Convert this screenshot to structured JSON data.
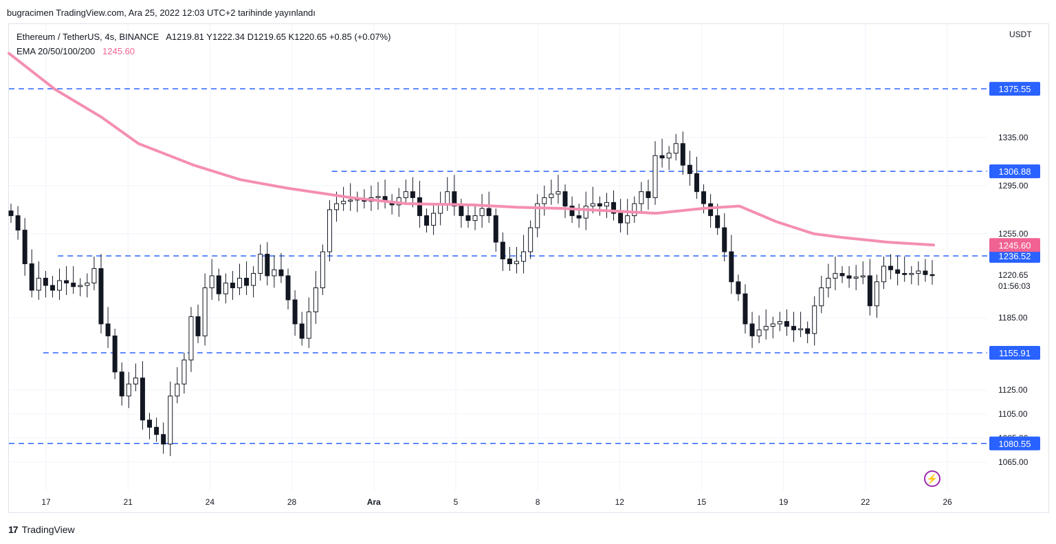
{
  "caption": "bugracimen TradingView.com, Ara 25, 2022 12:03 UTC+2 tarihinde yayınlandı",
  "legend": {
    "symbol": "Ethereum / TetherUS, 4s, BINANCE",
    "ohlc": "A1219.81  Y1222.34  D1219.65  K1220.65  +0.85 (+0.07%)",
    "ema_label": "EMA 20/50/100/200",
    "ema_value": "1245.60"
  },
  "footer": {
    "logo": "17",
    "brand": "TradingView"
  },
  "chart_data": {
    "type": "line",
    "currency": "USDT",
    "price_ticks": [
      "1335.00",
      "1295.00",
      "1255.00",
      "1185.00",
      "1125.00",
      "1105.00",
      "1085.00",
      "1065.00"
    ],
    "ylim": [
      1050,
      1430
    ],
    "x_ticks": [
      "17",
      "21",
      "24",
      "28",
      "Ara",
      "5",
      "8",
      "12",
      "15",
      "19",
      "22",
      "26"
    ],
    "horizontal_levels": [
      {
        "value": 1375.55,
        "label": "1375.55",
        "start": 0.0
      },
      {
        "value": 1306.88,
        "label": "1306.88",
        "start": 0.33
      },
      {
        "value": 1236.52,
        "label": "1236.52",
        "start": 0.05
      },
      {
        "value": 1155.91,
        "label": "1155.91",
        "start": 0.035
      },
      {
        "value": 1080.55,
        "label": "1080.55",
        "start": 0.0
      }
    ],
    "last_price": {
      "value": 1220.65,
      "label": "1220.65",
      "countdown": "01:56:03"
    },
    "ema": {
      "name": "EMA 200",
      "value_label": "1245.60",
      "x": [
        0.0,
        0.05,
        0.1,
        0.14,
        0.2,
        0.25,
        0.3,
        0.37,
        0.43,
        0.5,
        0.55,
        0.6,
        0.65,
        0.7,
        0.75,
        0.79,
        0.83,
        0.87,
        0.9,
        0.95,
        1.0
      ],
      "y": [
        1405,
        1375,
        1352,
        1330,
        1312,
        1300,
        1293,
        1285,
        1280,
        1279,
        1277,
        1276,
        1274,
        1272,
        1276,
        1278,
        1265,
        1255,
        1252,
        1248,
        1245.6
      ]
    },
    "candles_close": [
      1270,
      1258,
      1230,
      1208,
      1218,
      1212,
      1208,
      1216,
      1214,
      1211,
      1212,
      1214,
      1226,
      1180,
      1170,
      1140,
      1120,
      1130,
      1135,
      1100,
      1094,
      1088,
      1080,
      1120,
      1130,
      1150,
      1186,
      1170,
      1210,
      1220,
      1205,
      1214,
      1210,
      1218,
      1212,
      1222,
      1238,
      1220,
      1225,
      1220,
      1200,
      1180,
      1168,
      1190,
      1210,
      1240,
      1275,
      1280,
      1282,
      1283,
      1284,
      1282,
      1285,
      1286,
      1282,
      1279,
      1285,
      1290,
      1285,
      1270,
      1262,
      1272,
      1280,
      1290,
      1278,
      1270,
      1266,
      1270,
      1276,
      1270,
      1248,
      1234,
      1230,
      1232,
      1240,
      1260,
      1280,
      1285,
      1288,
      1290,
      1278,
      1270,
      1268,
      1278,
      1280,
      1278,
      1281,
      1272,
      1264,
      1270,
      1280,
      1290,
      1285,
      1320,
      1318,
      1322,
      1330,
      1312,
      1305,
      1290,
      1280,
      1270,
      1260,
      1240,
      1215,
      1205,
      1180,
      1170,
      1175,
      1178,
      1180,
      1182,
      1178,
      1175,
      1176,
      1172,
      1195,
      1210,
      1218,
      1222,
      1220,
      1218,
      1219,
      1220,
      1195,
      1215,
      1228,
      1225,
      1222,
      1221,
      1222,
      1224,
      1221,
      1220.65
    ]
  }
}
